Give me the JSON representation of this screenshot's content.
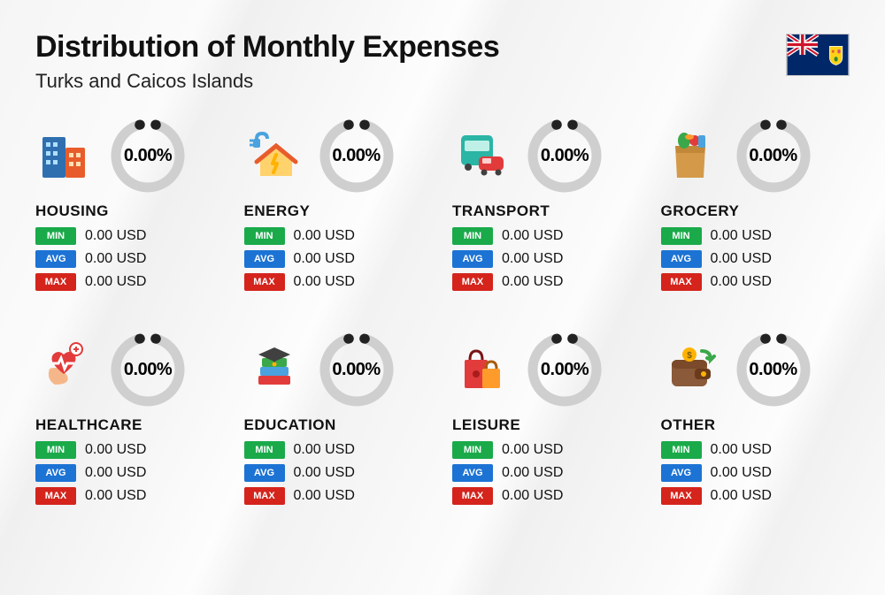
{
  "title": "Distribution of Monthly Expenses",
  "subtitle": "Turks and Caicos Islands",
  "flag": {
    "background": "#002868",
    "union_bg": "#002868",
    "union_red": "#cf142b",
    "shield_bg": "#fcd116"
  },
  "ring": {
    "track_color": "#cfcfcf",
    "indicator_color": "#222222",
    "gap_deg": 28
  },
  "badge_colors": {
    "min": "#1aaa4a",
    "avg": "#1c73d4",
    "max": "#d4241c"
  },
  "labels": {
    "min": "MIN",
    "avg": "AVG",
    "max": "MAX"
  },
  "categories": [
    {
      "key": "housing",
      "name": "HOUSING",
      "pct": "0.00%",
      "min": "0.00 USD",
      "avg": "0.00 USD",
      "max": "0.00 USD",
      "icon": "buildings"
    },
    {
      "key": "energy",
      "name": "ENERGY",
      "pct": "0.00%",
      "min": "0.00 USD",
      "avg": "0.00 USD",
      "max": "0.00 USD",
      "icon": "energy-house"
    },
    {
      "key": "transport",
      "name": "TRANSPORT",
      "pct": "0.00%",
      "min": "0.00 USD",
      "avg": "0.00 USD",
      "max": "0.00 USD",
      "icon": "bus-car"
    },
    {
      "key": "grocery",
      "name": "GROCERY",
      "pct": "0.00%",
      "min": "0.00 USD",
      "avg": "0.00 USD",
      "max": "0.00 USD",
      "icon": "grocery-bag"
    },
    {
      "key": "healthcare",
      "name": "HEALTHCARE",
      "pct": "0.00%",
      "min": "0.00 USD",
      "avg": "0.00 USD",
      "max": "0.00 USD",
      "icon": "healthcare"
    },
    {
      "key": "education",
      "name": "EDUCATION",
      "pct": "0.00%",
      "min": "0.00 USD",
      "avg": "0.00 USD",
      "max": "0.00 USD",
      "icon": "education"
    },
    {
      "key": "leisure",
      "name": "LEISURE",
      "pct": "0.00%",
      "min": "0.00 USD",
      "avg": "0.00 USD",
      "max": "0.00 USD",
      "icon": "shopping-bags"
    },
    {
      "key": "other",
      "name": "OTHER",
      "pct": "0.00%",
      "min": "0.00 USD",
      "avg": "0.00 USD",
      "max": "0.00 USD",
      "icon": "wallet"
    }
  ]
}
